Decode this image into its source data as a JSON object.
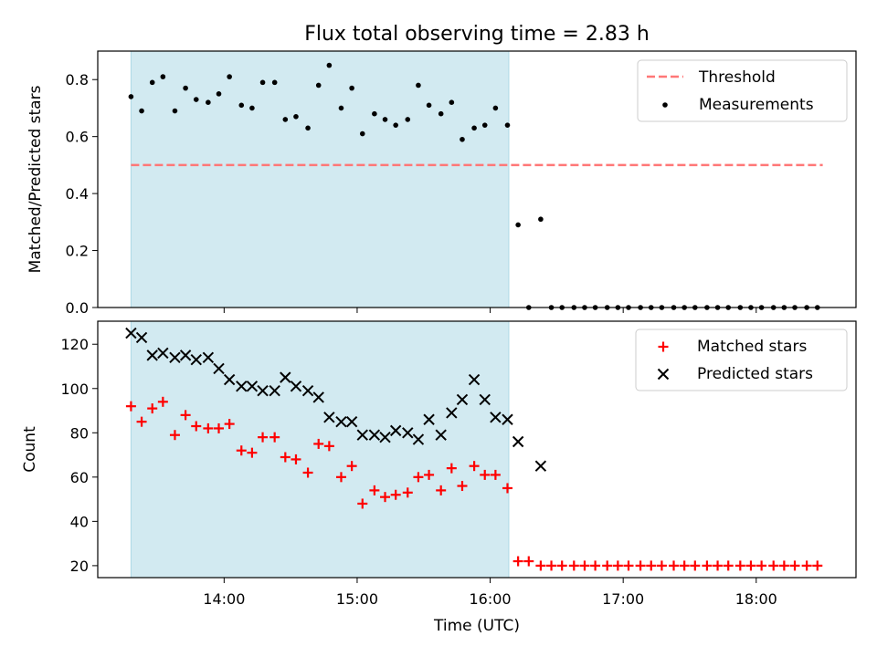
{
  "chart_data": [
    {
      "type": "scatter",
      "title": "Flux total observing time = 2.83 h",
      "xlabel": "",
      "ylabel": "Matched/Predicted stars",
      "xlim": [
        13.05,
        18.75
      ],
      "ylim": [
        0,
        0.9
      ],
      "yticks": [
        0.0,
        0.2,
        0.4,
        0.6,
        0.8
      ],
      "ytick_labels": [
        "0.0",
        "0.2",
        "0.4",
        "0.6",
        "0.8"
      ],
      "shaded_region": {
        "x": [
          13.3,
          16.14
        ],
        "color": "#add8e6"
      },
      "threshold": {
        "name": "Threshold",
        "y": 0.5,
        "x": [
          13.3,
          18.5
        ],
        "color": "#ff7777",
        "style": "dashed"
      },
      "legend_position": "top-right",
      "series": [
        {
          "name": "Measurements",
          "color": "#000000",
          "marker": "dot",
          "x": [
            13.3,
            13.38,
            13.46,
            13.54,
            13.63,
            13.71,
            13.79,
            13.88,
            13.96,
            14.04,
            14.13,
            14.21,
            14.29,
            14.38,
            14.46,
            14.54,
            14.63,
            14.71,
            14.79,
            14.88,
            14.96,
            15.04,
            15.13,
            15.21,
            15.29,
            15.38,
            15.46,
            15.54,
            15.63,
            15.71,
            15.79,
            15.88,
            15.96,
            16.04,
            16.13,
            16.21,
            16.29,
            16.38,
            16.46,
            16.54,
            16.63,
            16.71,
            16.79,
            16.88,
            16.96,
            17.04,
            17.13,
            17.21,
            17.29,
            17.38,
            17.46,
            17.54,
            17.63,
            17.71,
            17.79,
            17.88,
            17.96,
            18.04,
            18.13,
            18.21,
            18.29,
            18.38,
            18.46
          ],
          "y": [
            0.74,
            0.69,
            0.79,
            0.81,
            0.69,
            0.77,
            0.73,
            0.72,
            0.75,
            0.81,
            0.71,
            0.7,
            0.79,
            0.79,
            0.66,
            0.67,
            0.63,
            0.78,
            0.85,
            0.7,
            0.77,
            0.61,
            0.68,
            0.66,
            0.64,
            0.66,
            0.78,
            0.71,
            0.68,
            0.72,
            0.59,
            0.63,
            0.64,
            0.7,
            0.64,
            0.29,
            0.0,
            0.31,
            0.0,
            0.0,
            0.0,
            0.0,
            0.0,
            0.0,
            0.0,
            0.0,
            0.0,
            0.0,
            0.0,
            0.0,
            0.0,
            0.0,
            0.0,
            0.0,
            0.0,
            0.0,
            0.0,
            0.0,
            0.0,
            0.0,
            0.0,
            0.0,
            0.0
          ]
        }
      ]
    },
    {
      "type": "scatter",
      "title": "",
      "xlabel": "Time (UTC)",
      "ylabel": "Count",
      "xlim": [
        13.05,
        18.75
      ],
      "ylim": [
        14.6,
        130.4
      ],
      "xticks": [
        14,
        15,
        16,
        17,
        18
      ],
      "xtick_labels": [
        "14:00",
        "15:00",
        "16:00",
        "17:00",
        "18:00"
      ],
      "yticks": [
        20,
        40,
        60,
        80,
        100,
        120
      ],
      "ytick_labels": [
        "20",
        "40",
        "60",
        "80",
        "100",
        "120"
      ],
      "shaded_region": {
        "x": [
          13.3,
          16.14
        ],
        "color": "#add8e6"
      },
      "legend_position": "top-right",
      "series": [
        {
          "name": "Matched stars",
          "color": "#ff0000",
          "marker": "plus",
          "x": [
            13.3,
            13.38,
            13.46,
            13.54,
            13.63,
            13.71,
            13.79,
            13.88,
            13.96,
            14.04,
            14.13,
            14.21,
            14.29,
            14.38,
            14.46,
            14.54,
            14.63,
            14.71,
            14.79,
            14.88,
            14.96,
            15.04,
            15.13,
            15.21,
            15.29,
            15.38,
            15.46,
            15.54,
            15.63,
            15.71,
            15.79,
            15.88,
            15.96,
            16.04,
            16.13,
            16.21,
            16.29,
            16.38,
            16.46,
            16.54,
            16.63,
            16.71,
            16.79,
            16.88,
            16.96,
            17.04,
            17.13,
            17.21,
            17.29,
            17.38,
            17.46,
            17.54,
            17.63,
            17.71,
            17.79,
            17.88,
            17.96,
            18.04,
            18.13,
            18.21,
            18.29,
            18.38,
            18.46
          ],
          "y": [
            92,
            85,
            91,
            94,
            79,
            88,
            83,
            82,
            82,
            84,
            72,
            71,
            78,
            78,
            69,
            68,
            62,
            75,
            74,
            60,
            65,
            48,
            54,
            51,
            52,
            53,
            60,
            61,
            54,
            64,
            56,
            65,
            61,
            61,
            55,
            22,
            22,
            20,
            20,
            20,
            20,
            20,
            20,
            20,
            20,
            20,
            20,
            20,
            20,
            20,
            20,
            20,
            20,
            20,
            20,
            20,
            20,
            20,
            20,
            20,
            20,
            20,
            20
          ]
        },
        {
          "name": "Predicted stars",
          "color": "#000000",
          "marker": "x",
          "x": [
            13.3,
            13.38,
            13.46,
            13.54,
            13.63,
            13.71,
            13.79,
            13.88,
            13.96,
            14.04,
            14.13,
            14.21,
            14.29,
            14.38,
            14.46,
            14.54,
            14.63,
            14.71,
            14.79,
            14.88,
            14.96,
            15.04,
            15.13,
            15.21,
            15.29,
            15.38,
            15.46,
            15.54,
            15.63,
            15.71,
            15.79,
            15.88,
            15.96,
            16.04,
            16.13,
            16.21,
            16.38
          ],
          "y": [
            125,
            123,
            115,
            116,
            114,
            115,
            113,
            114,
            109,
            104,
            101,
            101,
            99,
            99,
            105,
            101,
            99,
            96,
            87,
            85,
            85,
            79,
            79,
            78,
            81,
            80,
            77,
            86,
            79,
            89,
            95,
            104,
            95,
            87,
            86,
            76,
            65
          ]
        }
      ]
    }
  ]
}
